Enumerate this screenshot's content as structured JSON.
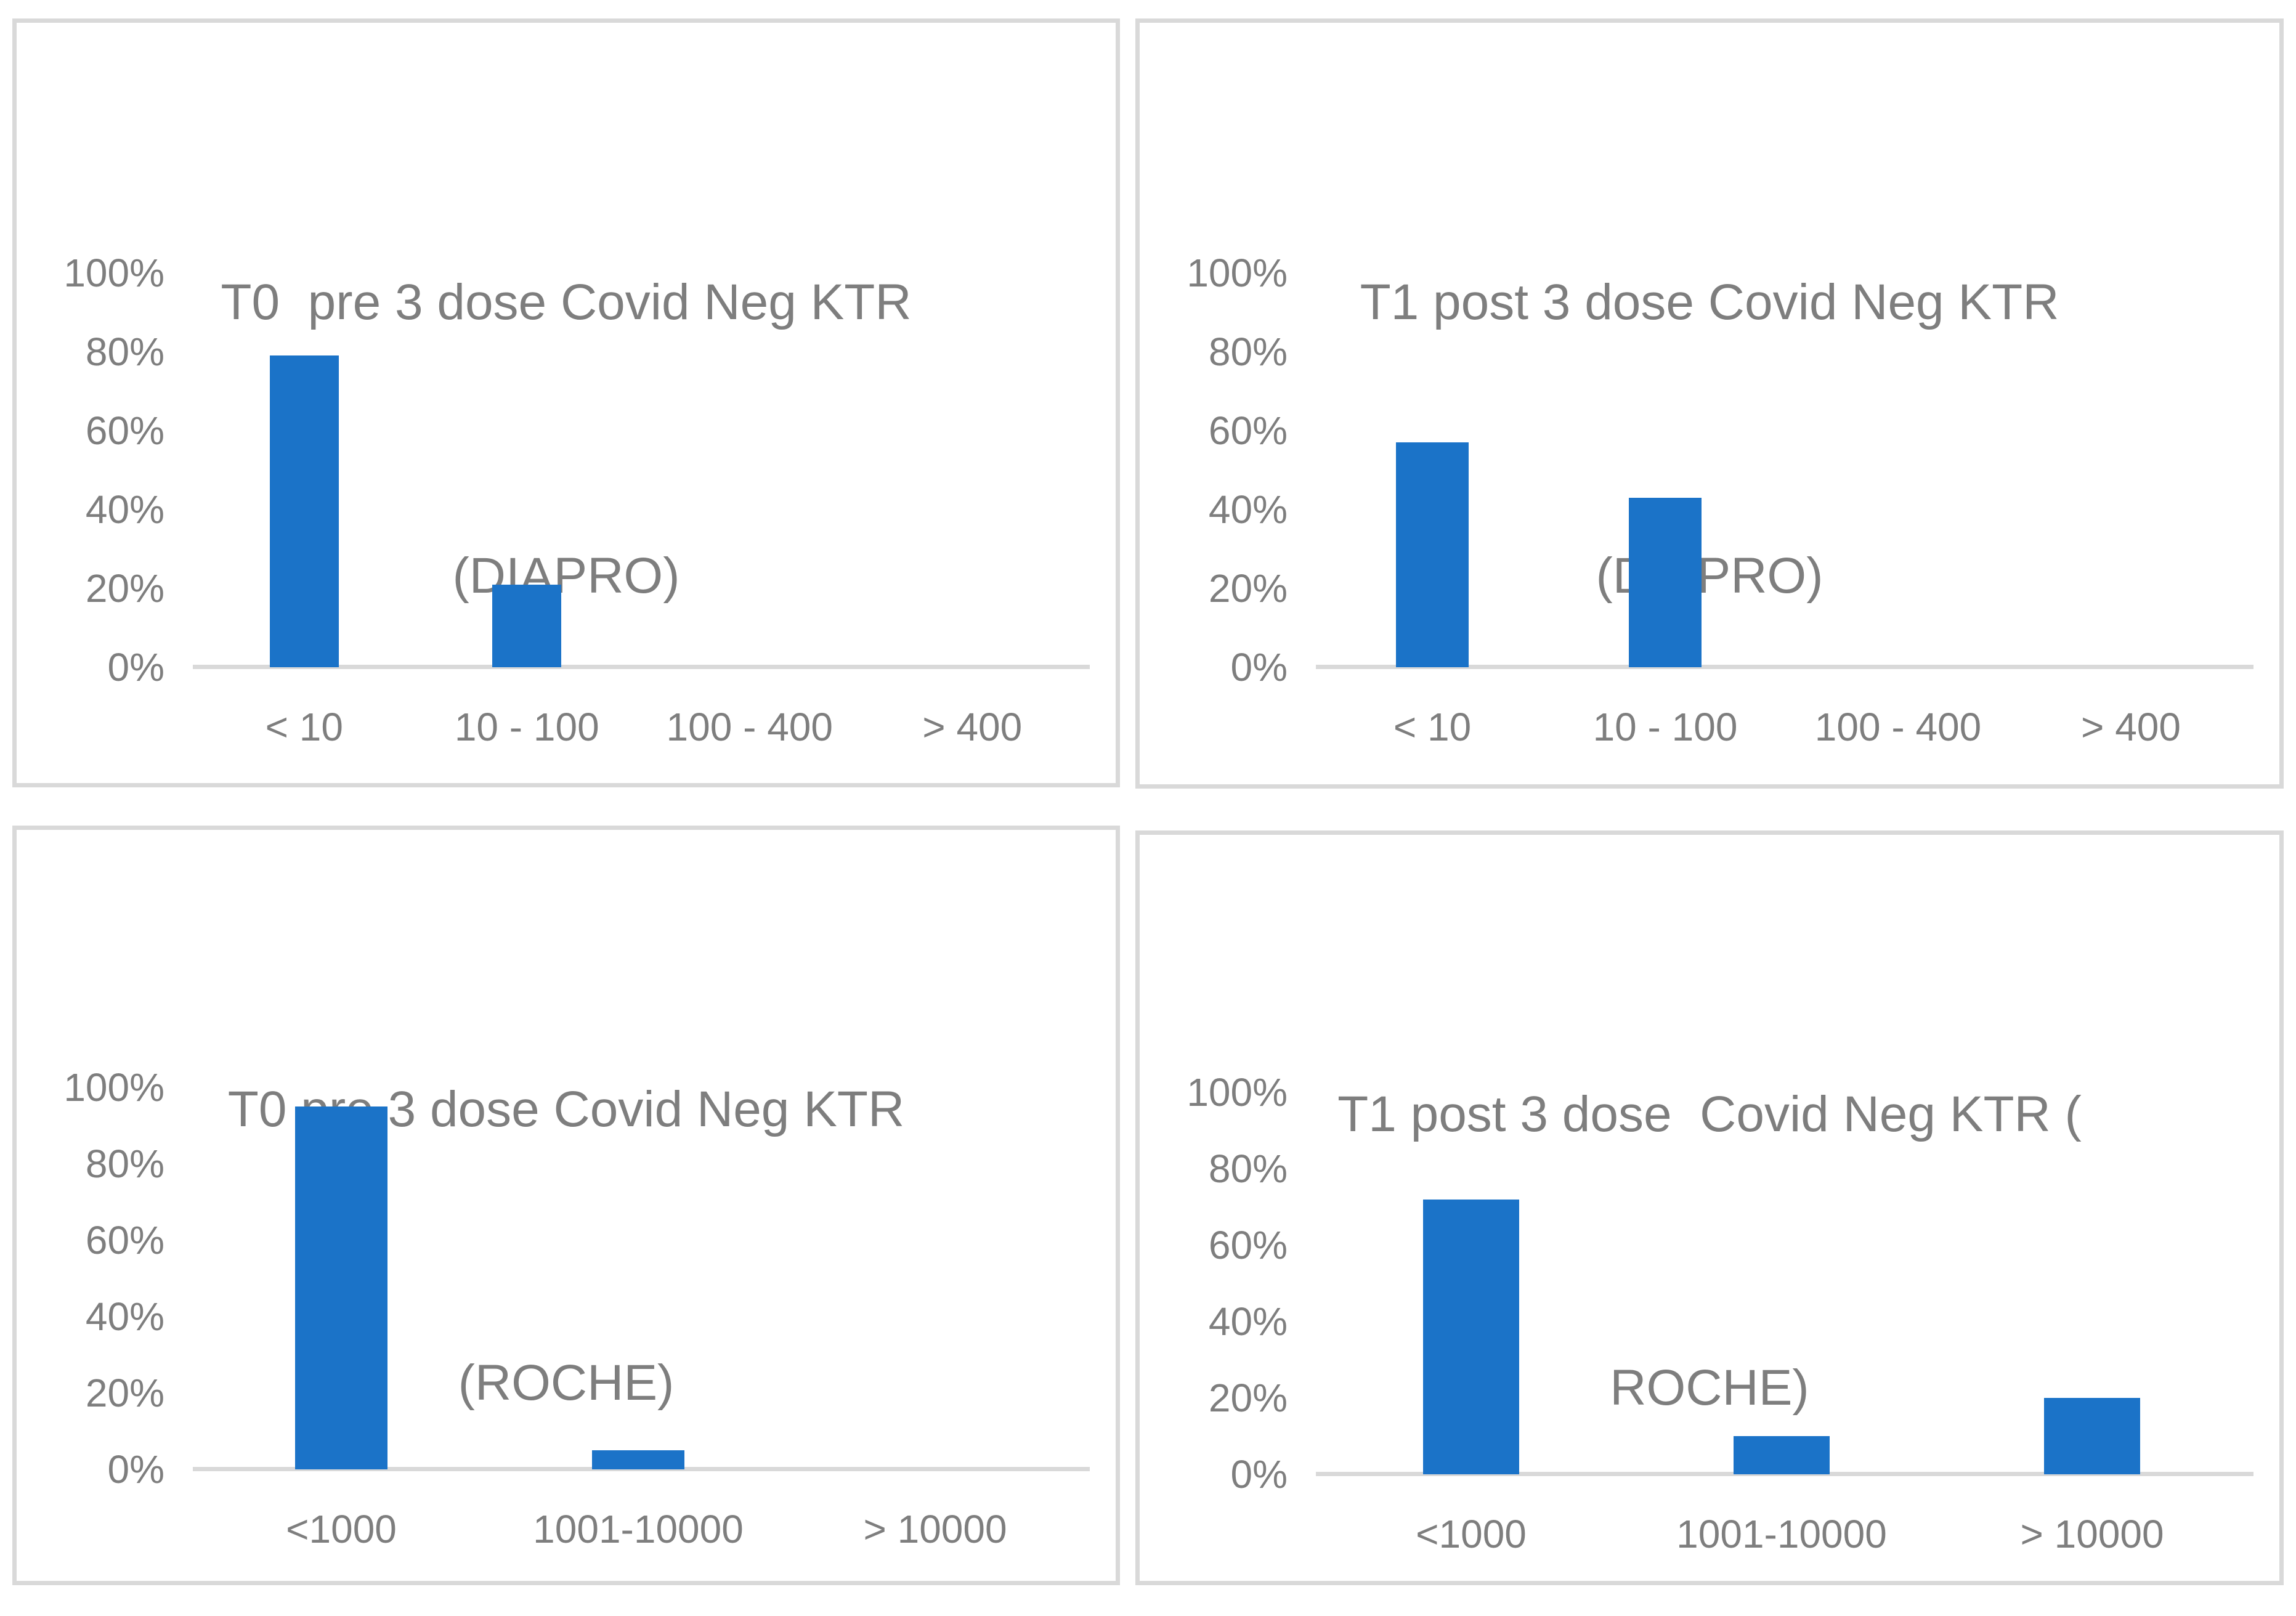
{
  "styles": {
    "background": "#FFFFFF",
    "bar_color": "#1B73C8",
    "panel_border_color": "#D9D9D9",
    "axis_line_color": "#D9D9D9",
    "text_color": "#7E7E7E"
  },
  "chart_data": [
    {
      "id": "t0-pre-diapro",
      "type": "bar",
      "title": "T0  pre 3 dose Covid Neg KTR (DIAPRO)",
      "title_lines": [
        "T0  pre 3 dose Covid Neg KTR",
        "(DIAPRO)"
      ],
      "categories": [
        "< 10",
        "10 - 100",
        "100 - 400",
        "> 400"
      ],
      "values": [
        79,
        21,
        0,
        0
      ],
      "value_unit": "percent",
      "ylim": [
        0,
        100
      ],
      "yticks": [
        0,
        20,
        40,
        60,
        80,
        100
      ],
      "ytick_labels": [
        "0%",
        "20%",
        "40%",
        "60%",
        "80%",
        "100%"
      ],
      "grid": false,
      "legend": null
    },
    {
      "id": "t1-post-diapro",
      "type": "bar",
      "title": "T1 post 3 dose Covid Neg KTR (DIAPRO)",
      "title_lines": [
        "T1 post 3 dose Covid Neg KTR",
        "(DIAPRO)"
      ],
      "categories": [
        "< 10",
        "10 - 100",
        "100 - 400",
        "> 400"
      ],
      "values": [
        57,
        43,
        0,
        0
      ],
      "value_unit": "percent",
      "ylim": [
        0,
        100
      ],
      "yticks": [
        0,
        20,
        40,
        60,
        80,
        100
      ],
      "ytick_labels": [
        "0%",
        "20%",
        "40%",
        "60%",
        "80%",
        "100%"
      ],
      "grid": false,
      "legend": null
    },
    {
      "id": "t0-pre-roche",
      "type": "bar",
      "title": "T0 pre 3 dose Covid Neg KTR (ROCHE)",
      "title_lines": [
        "T0 pre 3 dose Covid Neg KTR",
        "(ROCHE)"
      ],
      "categories": [
        "<1000",
        "1001-10000",
        "> 10000"
      ],
      "values": [
        95,
        5,
        0
      ],
      "value_unit": "percent",
      "ylim": [
        0,
        100
      ],
      "yticks": [
        0,
        20,
        40,
        60,
        80,
        100
      ],
      "ytick_labels": [
        "0%",
        "20%",
        "40%",
        "60%",
        "80%",
        "100%"
      ],
      "grid": false,
      "legend": null
    },
    {
      "id": "t1-post-roche",
      "type": "bar",
      "title": "T1 post 3 dose  Covid Neg KTR ( ROCHE)",
      "title_lines": [
        "T1 post 3 dose  Covid Neg KTR (",
        "ROCHE)"
      ],
      "categories": [
        "<1000",
        "1001-10000",
        "> 10000"
      ],
      "values": [
        72,
        10,
        20
      ],
      "value_unit": "percent",
      "ylim": [
        0,
        100
      ],
      "yticks": [
        0,
        20,
        40,
        60,
        80,
        100
      ],
      "ytick_labels": [
        "0%",
        "20%",
        "40%",
        "60%",
        "80%",
        "100%"
      ],
      "grid": false,
      "legend": null
    }
  ]
}
